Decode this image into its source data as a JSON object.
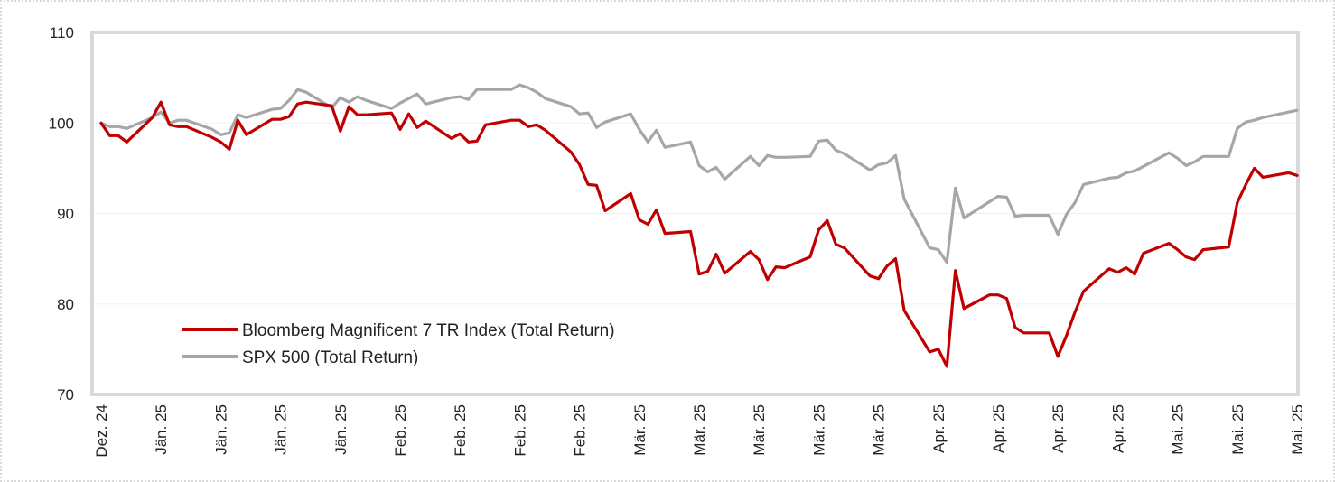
{
  "chart_data": {
    "type": "line",
    "title": "",
    "xlabel": "",
    "ylabel": "",
    "ylim": [
      70,
      110
    ],
    "yticks": [
      70,
      80,
      90,
      100,
      110
    ],
    "grid": "horizontal",
    "legend_position": "bottom-left",
    "x_tick_labels": [
      "Dez. 24",
      "Jän. 25",
      "Jän. 25",
      "Jän. 25",
      "Jän. 25",
      "Feb. 25",
      "Feb. 25",
      "Feb. 25",
      "Feb. 25",
      "Mär. 25",
      "Mär. 25",
      "Mär. 25",
      "Mär. 25",
      "Mär. 25",
      "Apr. 25",
      "Apr. 25",
      "Apr. 25",
      "Apr. 25",
      "Mai. 25",
      "Mai. 25",
      "Mai. 25"
    ],
    "x_tick_dates": [
      "2024-12-31",
      "2025-01-07",
      "2025-01-14",
      "2025-01-21",
      "2025-01-28",
      "2025-02-04",
      "2025-02-11",
      "2025-02-18",
      "2025-02-25",
      "2025-03-04",
      "2025-03-11",
      "2025-03-18",
      "2025-03-25",
      "2025-04-01",
      "2025-04-08",
      "2025-04-15",
      "2025-04-22",
      "2025-04-29",
      "2025-05-06",
      "2025-05-13",
      "2025-05-20"
    ],
    "x_range": [
      "2024-12-31",
      "2025-05-20"
    ],
    "series": [
      {
        "name": "Bloomberg Magnificent 7 TR Index (Total Return)",
        "color": "#c00000",
        "points": [
          [
            "2024-12-31",
            100.0
          ],
          [
            "2025-01-01",
            98.6
          ],
          [
            "2025-01-02",
            98.6
          ],
          [
            "2025-01-03",
            97.9
          ],
          [
            "2025-01-06",
            100.6
          ],
          [
            "2025-01-07",
            102.3
          ],
          [
            "2025-01-08",
            99.8
          ],
          [
            "2025-01-09",
            99.6
          ],
          [
            "2025-01-10",
            99.6
          ],
          [
            "2025-01-13",
            98.4
          ],
          [
            "2025-01-14",
            97.9
          ],
          [
            "2025-01-15",
            97.1
          ],
          [
            "2025-01-16",
            100.3
          ],
          [
            "2025-01-17",
            98.7
          ],
          [
            "2025-01-20",
            100.4
          ],
          [
            "2025-01-21",
            100.4
          ],
          [
            "2025-01-22",
            100.7
          ],
          [
            "2025-01-23",
            102.1
          ],
          [
            "2025-01-24",
            102.3
          ],
          [
            "2025-01-27",
            101.9
          ],
          [
            "2025-01-28",
            99.1
          ],
          [
            "2025-01-29",
            101.8
          ],
          [
            "2025-01-30",
            100.9
          ],
          [
            "2025-01-31",
            100.9
          ],
          [
            "2025-02-03",
            101.1
          ],
          [
            "2025-02-04",
            99.3
          ],
          [
            "2025-02-05",
            101.0
          ],
          [
            "2025-02-06",
            99.5
          ],
          [
            "2025-02-07",
            100.2
          ],
          [
            "2025-02-10",
            98.3
          ],
          [
            "2025-02-11",
            98.8
          ],
          [
            "2025-02-12",
            97.9
          ],
          [
            "2025-02-13",
            98.0
          ],
          [
            "2025-02-14",
            99.8
          ],
          [
            "2025-02-17",
            100.3
          ],
          [
            "2025-02-18",
            100.3
          ],
          [
            "2025-02-19",
            99.6
          ],
          [
            "2025-02-20",
            99.8
          ],
          [
            "2025-02-21",
            99.2
          ],
          [
            "2025-02-24",
            96.8
          ],
          [
            "2025-02-25",
            95.4
          ],
          [
            "2025-02-26",
            93.2
          ],
          [
            "2025-02-27",
            93.1
          ],
          [
            "2025-02-28",
            90.3
          ],
          [
            "2025-03-03",
            92.2
          ],
          [
            "2025-03-04",
            89.3
          ],
          [
            "2025-03-05",
            88.8
          ],
          [
            "2025-03-06",
            90.4
          ],
          [
            "2025-03-07",
            87.8
          ],
          [
            "2025-03-10",
            88.0
          ],
          [
            "2025-03-11",
            83.3
          ],
          [
            "2025-03-12",
            83.6
          ],
          [
            "2025-03-13",
            85.5
          ],
          [
            "2025-03-14",
            83.4
          ],
          [
            "2025-03-17",
            85.8
          ],
          [
            "2025-03-18",
            84.9
          ],
          [
            "2025-03-19",
            82.7
          ],
          [
            "2025-03-20",
            84.1
          ],
          [
            "2025-03-21",
            84.0
          ],
          [
            "2025-03-24",
            85.2
          ],
          [
            "2025-03-25",
            88.2
          ],
          [
            "2025-03-26",
            89.2
          ],
          [
            "2025-03-27",
            86.6
          ],
          [
            "2025-03-28",
            86.2
          ],
          [
            "2025-03-31",
            83.1
          ],
          [
            "2025-04-01",
            82.8
          ],
          [
            "2025-04-02",
            84.2
          ],
          [
            "2025-04-03",
            85.0
          ],
          [
            "2025-04-04",
            79.3
          ],
          [
            "2025-04-07",
            74.7
          ],
          [
            "2025-04-08",
            75.0
          ],
          [
            "2025-04-09",
            73.1
          ],
          [
            "2025-04-10",
            83.7
          ],
          [
            "2025-04-11",
            79.5
          ],
          [
            "2025-04-14",
            81.0
          ],
          [
            "2025-04-15",
            81.0
          ],
          [
            "2025-04-16",
            80.6
          ],
          [
            "2025-04-17",
            77.4
          ],
          [
            "2025-04-18",
            76.8
          ],
          [
            "2025-04-21",
            76.8
          ],
          [
            "2025-04-22",
            74.2
          ],
          [
            "2025-04-23",
            76.5
          ],
          [
            "2025-04-24",
            79.1
          ],
          [
            "2025-04-25",
            81.4
          ],
          [
            "2025-04-28",
            83.9
          ],
          [
            "2025-04-29",
            83.5
          ],
          [
            "2025-04-30",
            84.0
          ],
          [
            "2025-05-01",
            83.3
          ],
          [
            "2025-05-02",
            85.6
          ],
          [
            "2025-05-05",
            86.7
          ],
          [
            "2025-05-06",
            86.0
          ],
          [
            "2025-05-07",
            85.2
          ],
          [
            "2025-05-08",
            84.9
          ],
          [
            "2025-05-09",
            86.0
          ],
          [
            "2025-05-12",
            86.3
          ],
          [
            "2025-05-13",
            91.2
          ],
          [
            "2025-05-14",
            93.2
          ],
          [
            "2025-05-15",
            95.0
          ],
          [
            "2025-05-16",
            94.0
          ],
          [
            "2025-05-19",
            94.5
          ],
          [
            "2025-05-20",
            94.2
          ]
        ]
      },
      {
        "name": "SPX 500 (Total Return)",
        "color": "#a6a6a6",
        "points": [
          [
            "2024-12-31",
            100.0
          ],
          [
            "2025-01-01",
            99.6
          ],
          [
            "2025-01-02",
            99.6
          ],
          [
            "2025-01-03",
            99.4
          ],
          [
            "2025-01-06",
            100.6
          ],
          [
            "2025-01-07",
            101.2
          ],
          [
            "2025-01-08",
            100.0
          ],
          [
            "2025-01-09",
            100.3
          ],
          [
            "2025-01-10",
            100.3
          ],
          [
            "2025-01-13",
            99.3
          ],
          [
            "2025-01-14",
            98.7
          ],
          [
            "2025-01-15",
            98.9
          ],
          [
            "2025-01-16",
            100.9
          ],
          [
            "2025-01-17",
            100.6
          ],
          [
            "2025-01-20",
            101.5
          ],
          [
            "2025-01-21",
            101.6
          ],
          [
            "2025-01-22",
            102.5
          ],
          [
            "2025-01-23",
            103.7
          ],
          [
            "2025-01-24",
            103.4
          ],
          [
            "2025-01-27",
            101.7
          ],
          [
            "2025-01-28",
            102.8
          ],
          [
            "2025-01-29",
            102.3
          ],
          [
            "2025-01-30",
            102.9
          ],
          [
            "2025-01-31",
            102.5
          ],
          [
            "2025-02-03",
            101.6
          ],
          [
            "2025-02-04",
            102.2
          ],
          [
            "2025-02-05",
            102.7
          ],
          [
            "2025-02-06",
            103.2
          ],
          [
            "2025-02-07",
            102.1
          ],
          [
            "2025-02-10",
            102.8
          ],
          [
            "2025-02-11",
            102.9
          ],
          [
            "2025-02-12",
            102.6
          ],
          [
            "2025-02-13",
            103.7
          ],
          [
            "2025-02-14",
            103.7
          ],
          [
            "2025-02-17",
            103.7
          ],
          [
            "2025-02-18",
            104.2
          ],
          [
            "2025-02-19",
            103.9
          ],
          [
            "2025-02-20",
            103.4
          ],
          [
            "2025-02-21",
            102.7
          ],
          [
            "2025-02-24",
            101.8
          ],
          [
            "2025-02-25",
            101.0
          ],
          [
            "2025-02-26",
            101.1
          ],
          [
            "2025-02-27",
            99.5
          ],
          [
            "2025-02-28",
            100.1
          ],
          [
            "2025-03-03",
            101.0
          ],
          [
            "2025-03-04",
            99.3
          ],
          [
            "2025-03-05",
            97.9
          ],
          [
            "2025-03-06",
            99.2
          ],
          [
            "2025-03-07",
            97.3
          ],
          [
            "2025-03-10",
            97.9
          ],
          [
            "2025-03-11",
            95.3
          ],
          [
            "2025-03-12",
            94.6
          ],
          [
            "2025-03-13",
            95.1
          ],
          [
            "2025-03-14",
            93.8
          ],
          [
            "2025-03-17",
            96.3
          ],
          [
            "2025-03-18",
            95.3
          ],
          [
            "2025-03-19",
            96.4
          ],
          [
            "2025-03-20",
            96.2
          ],
          [
            "2025-03-21",
            96.2
          ],
          [
            "2025-03-24",
            96.3
          ],
          [
            "2025-03-25",
            98.0
          ],
          [
            "2025-03-26",
            98.1
          ],
          [
            "2025-03-27",
            97.0
          ],
          [
            "2025-03-28",
            96.6
          ],
          [
            "2025-03-31",
            94.8
          ],
          [
            "2025-04-01",
            95.4
          ],
          [
            "2025-04-02",
            95.6
          ],
          [
            "2025-04-03",
            96.4
          ],
          [
            "2025-04-04",
            91.6
          ],
          [
            "2025-04-07",
            86.2
          ],
          [
            "2025-04-08",
            86.0
          ],
          [
            "2025-04-09",
            84.6
          ],
          [
            "2025-04-10",
            92.8
          ],
          [
            "2025-04-11",
            89.5
          ],
          [
            "2025-04-14",
            91.3
          ],
          [
            "2025-04-15",
            91.9
          ],
          [
            "2025-04-16",
            91.8
          ],
          [
            "2025-04-17",
            89.7
          ],
          [
            "2025-04-18",
            89.8
          ],
          [
            "2025-04-21",
            89.8
          ],
          [
            "2025-04-22",
            87.7
          ],
          [
            "2025-04-23",
            89.9
          ],
          [
            "2025-04-24",
            91.2
          ],
          [
            "2025-04-25",
            93.2
          ],
          [
            "2025-04-28",
            93.9
          ],
          [
            "2025-04-29",
            94.0
          ],
          [
            "2025-04-30",
            94.5
          ],
          [
            "2025-05-01",
            94.7
          ],
          [
            "2025-05-02",
            95.2
          ],
          [
            "2025-05-05",
            96.7
          ],
          [
            "2025-05-06",
            96.1
          ],
          [
            "2025-05-07",
            95.3
          ],
          [
            "2025-05-08",
            95.7
          ],
          [
            "2025-05-09",
            96.3
          ],
          [
            "2025-05-12",
            96.3
          ],
          [
            "2025-05-13",
            99.4
          ],
          [
            "2025-05-14",
            100.1
          ],
          [
            "2025-05-15",
            100.3
          ],
          [
            "2025-05-16",
            100.6
          ],
          [
            "2025-05-19",
            101.2
          ],
          [
            "2025-05-20",
            101.4
          ]
        ]
      }
    ]
  }
}
